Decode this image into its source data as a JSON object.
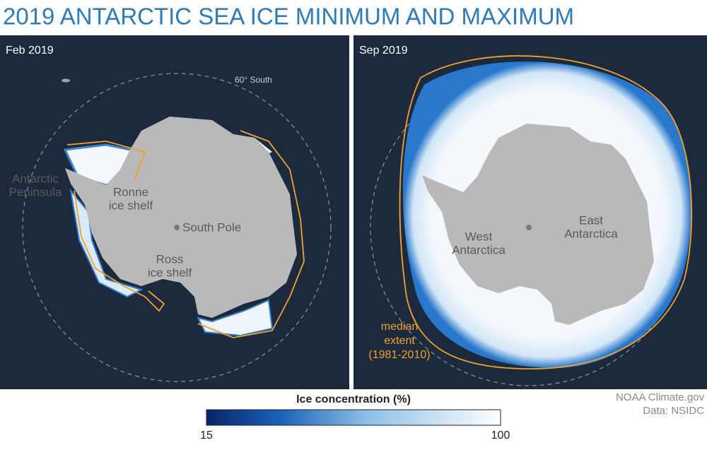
{
  "header": {
    "title": "2019 ANTARCTIC SEA ICE MINIMUM AND MAXIMUM"
  },
  "panels": [
    {
      "date": "Feb 2019",
      "circle_label": "60° South",
      "labels": {
        "peninsula": [
          "Antarctic",
          "Peninsula"
        ],
        "ronne": [
          "Ronne",
          "ice shelf"
        ],
        "pole": "South Pole",
        "ross": [
          "Ross",
          "ice shelf"
        ]
      }
    },
    {
      "date": "Sep 2019",
      "labels": {
        "west": [
          "West",
          "Antarctica"
        ],
        "east": [
          "East",
          "Antarctica"
        ],
        "median": [
          "median",
          "extent",
          "(1981-2010)"
        ]
      }
    }
  ],
  "legend": {
    "title": "Ice concentration (%)",
    "min_label": "15",
    "max_label": "100"
  },
  "credits": [
    "NOAA Climate.gov",
    "Data: NSIDC"
  ]
}
